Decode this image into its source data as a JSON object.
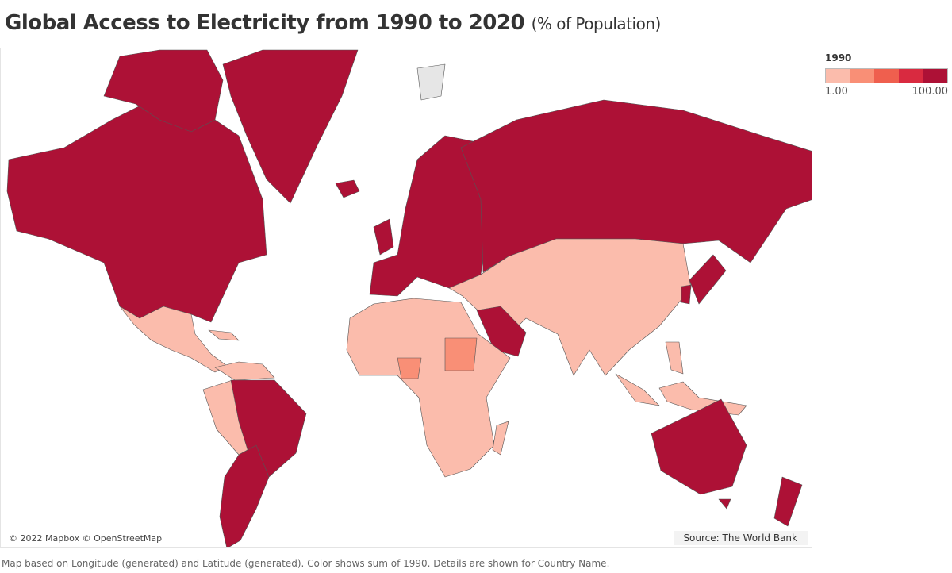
{
  "title": {
    "main": "Global Access to Electricity from 1990 to 2020",
    "sub": "(% of Population)"
  },
  "legend": {
    "title": "1990",
    "min_label": "1.00",
    "max_label": "100.00",
    "colors": [
      "#fbbcac",
      "#f98f76",
      "#ef5f4e",
      "#d92a40",
      "#ad1136"
    ]
  },
  "map": {
    "attribution": "© 2022 Mapbox © OpenStreetMap",
    "source": "Source: The World Bank",
    "no_data_color": "#e6e6e6",
    "border_color": "#555555"
  },
  "footnote": "Map based on Longitude (generated) and Latitude (generated).  Color shows sum of 1990.  Details are shown for Country Name."
}
